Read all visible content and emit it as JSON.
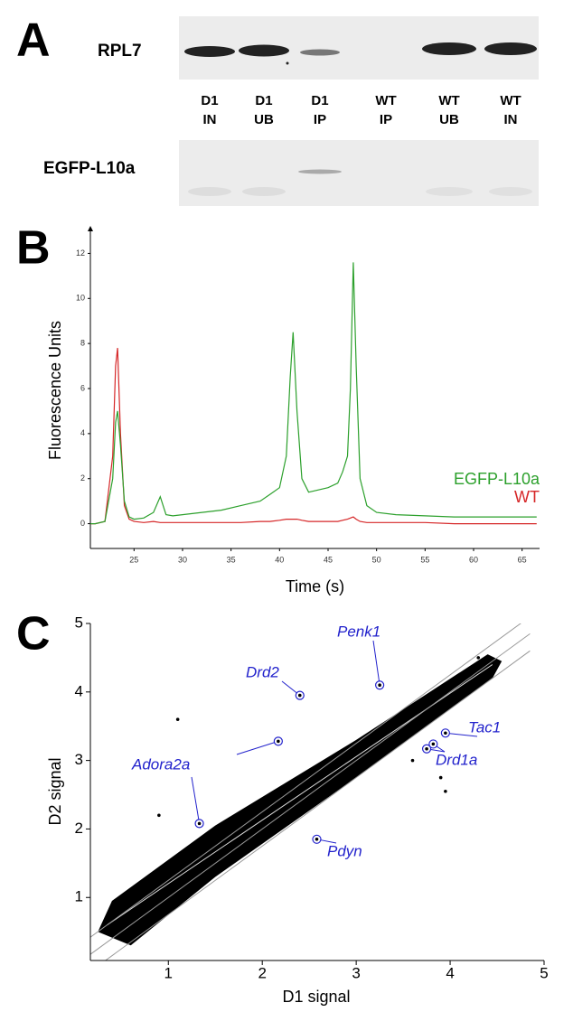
{
  "panels": [
    "A",
    "B",
    "C"
  ],
  "blot": {
    "rows": [
      "RPL7",
      "EGFP-L10a"
    ],
    "lanes": [
      [
        "D1",
        "IN"
      ],
      [
        "D1",
        "UB"
      ],
      [
        "D1",
        "IP"
      ],
      [
        "WT",
        "IP"
      ],
      [
        "WT",
        "UB"
      ],
      [
        "WT",
        "IN"
      ]
    ]
  },
  "chart_data": [
    {
      "type": "line",
      "xlabel": "Time (s)",
      "ylabel": "Fluorescence Units",
      "x": [
        20.5,
        21,
        22,
        22.8,
        23.1,
        23.3,
        23.6,
        24,
        24.5,
        25,
        26,
        27,
        27.7,
        28.3,
        29,
        30,
        32,
        34,
        36,
        38,
        39,
        40,
        40.7,
        41.1,
        41.4,
        41.8,
        42.3,
        43,
        44,
        45,
        46,
        46.5,
        47,
        47.3,
        47.6,
        47.9,
        48.3,
        49,
        50,
        52,
        55,
        58,
        60,
        62,
        65,
        66.5
      ],
      "series": [
        {
          "name": "EGFP-L10a",
          "color": "#2ca02c",
          "values": [
            0,
            0,
            0.1,
            2,
            4.5,
            5.0,
            3.5,
            1.0,
            0.3,
            0.2,
            0.25,
            0.5,
            1.2,
            0.4,
            0.35,
            0.4,
            0.5,
            0.6,
            0.8,
            1.0,
            1.3,
            1.6,
            3,
            6.5,
            8.5,
            5,
            2,
            1.4,
            1.5,
            1.6,
            1.8,
            2.3,
            3,
            6,
            11.6,
            7,
            2,
            0.8,
            0.5,
            0.4,
            0.35,
            0.3,
            0.3,
            0.3,
            0.3,
            0.3
          ]
        },
        {
          "name": "WT",
          "color": "#d62728",
          "values": [
            0,
            0,
            0.1,
            3,
            7,
            7.8,
            4,
            0.8,
            0.2,
            0.1,
            0.05,
            0.1,
            0.05,
            0.05,
            0.05,
            0.05,
            0.05,
            0.05,
            0.05,
            0.1,
            0.1,
            0.15,
            0.2,
            0.2,
            0.2,
            0.2,
            0.15,
            0.1,
            0.1,
            0.1,
            0.1,
            0.15,
            0.2,
            0.25,
            0.3,
            0.2,
            0.1,
            0.05,
            0.05,
            0.05,
            0.05,
            0,
            0,
            0,
            0,
            0
          ]
        }
      ],
      "xlim": [
        20.5,
        66.8
      ],
      "ylim": [
        -1.1,
        12.9
      ],
      "xticks": [
        25,
        30,
        35,
        40,
        45,
        50,
        55,
        60,
        65
      ],
      "yticks": [
        0,
        2,
        4,
        6,
        8,
        10,
        12
      ]
    },
    {
      "type": "scatter",
      "xlabel": "D1 signal",
      "ylabel": "D2 signal",
      "x": [
        1.1,
        3.9,
        3.95,
        0.9,
        3.6,
        4.3
      ],
      "values": [
        3.6,
        2.75,
        2.55,
        2.2,
        3.0,
        4.5
      ],
      "annotations": [
        {
          "text": "Drd2",
          "x": [
            2.4
          ],
          "y": [
            3.95
          ]
        },
        {
          "text": "Penk1",
          "x": [
            3.25
          ],
          "y": [
            4.1
          ]
        },
        {
          "text": "Tac1",
          "x": [
            3.95
          ],
          "y": [
            3.4
          ]
        },
        {
          "text": "Drd1a",
          "x": [
            3.75,
            3.82
          ],
          "y": [
            3.17,
            3.24
          ]
        },
        {
          "text": "Adora2a",
          "x": [
            1.33,
            2.17
          ],
          "y": [
            2.08,
            3.28
          ]
        },
        {
          "text": "Pdyn",
          "x": [
            2.58
          ],
          "y": [
            1.85
          ]
        }
      ],
      "xlim": [
        0.17,
        5
      ],
      "ylim": [
        0.08,
        5
      ],
      "xticks": [
        1,
        2,
        3,
        4,
        5
      ],
      "yticks": [
        1,
        2,
        3,
        4,
        5
      ]
    }
  ]
}
